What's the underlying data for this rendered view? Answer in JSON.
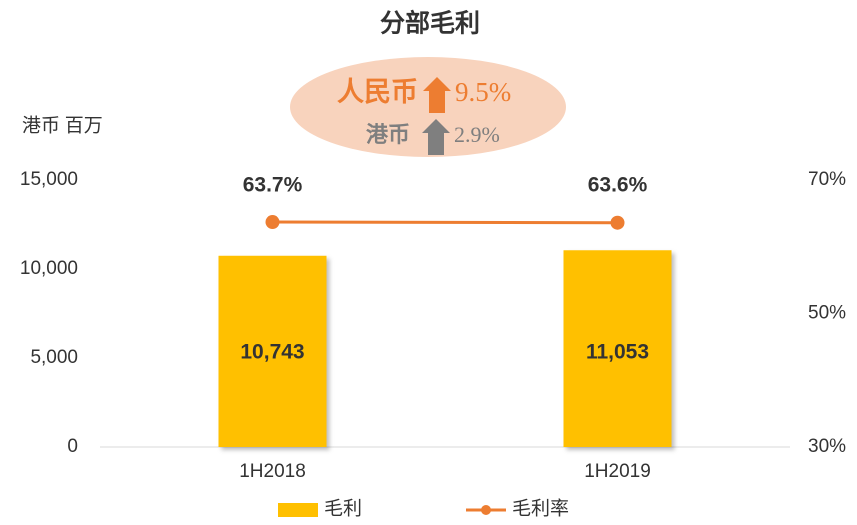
{
  "chart_data": {
    "type": "bar",
    "title": "分部毛利",
    "y_label": "港币 百万",
    "annotations": [
      {
        "label": "人民币",
        "value": 9.5,
        "value_label": "9.5%",
        "color": "#ed7d31"
      },
      {
        "label": "港币",
        "value": 2.9,
        "value_label": "2.9%",
        "color": "#7f7f7f"
      }
    ],
    "categories": [
      "1H2018",
      "1H2019"
    ],
    "series": [
      {
        "name": "毛利",
        "color": "#ffc000",
        "values": [
          10743,
          11053
        ],
        "value_labels": [
          "10,743",
          "11,053"
        ]
      },
      {
        "name": "毛利率",
        "color": "#ed7d31",
        "type": "line",
        "axis": "y2",
        "values": [
          63.7,
          63.6
        ],
        "value_labels": [
          "63.7%",
          "63.6%"
        ]
      }
    ],
    "ylim": [
      0,
      15000
    ],
    "yticks": [
      0,
      {
        "value": 5000,
        "label": "5,000"
      },
      {
        "value": 10000,
        "label": "10,000"
      },
      {
        "value": 15000,
        "label": "15,000"
      }
    ],
    "y2lim": [
      30,
      70
    ],
    "y2ticks": [
      {
        "value": 30,
        "label": "30%"
      },
      {
        "value": 50,
        "label": "50%"
      },
      {
        "value": 70,
        "label": "70%"
      }
    ],
    "legend": "bottom"
  }
}
